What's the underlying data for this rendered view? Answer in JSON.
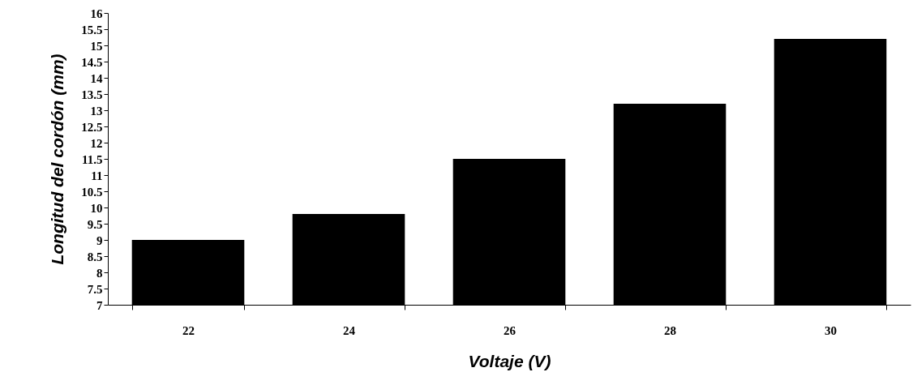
{
  "chart_data": {
    "type": "bar",
    "xlabel": "Voltaje (V)",
    "ylabel": "Longitud del cordón (mm)",
    "categories": [
      "22",
      "24",
      "26",
      "28",
      "30"
    ],
    "values": [
      9.0,
      9.8,
      11.5,
      13.2,
      15.2
    ],
    "color": "#000000",
    "ylim": [
      7,
      16
    ],
    "yticks": [
      7,
      7.5,
      8,
      8.5,
      9,
      9.5,
      10,
      10.5,
      11,
      11.5,
      12,
      12.5,
      13,
      13.5,
      14,
      14.5,
      15,
      15.5,
      16
    ],
    "grid": false
  }
}
